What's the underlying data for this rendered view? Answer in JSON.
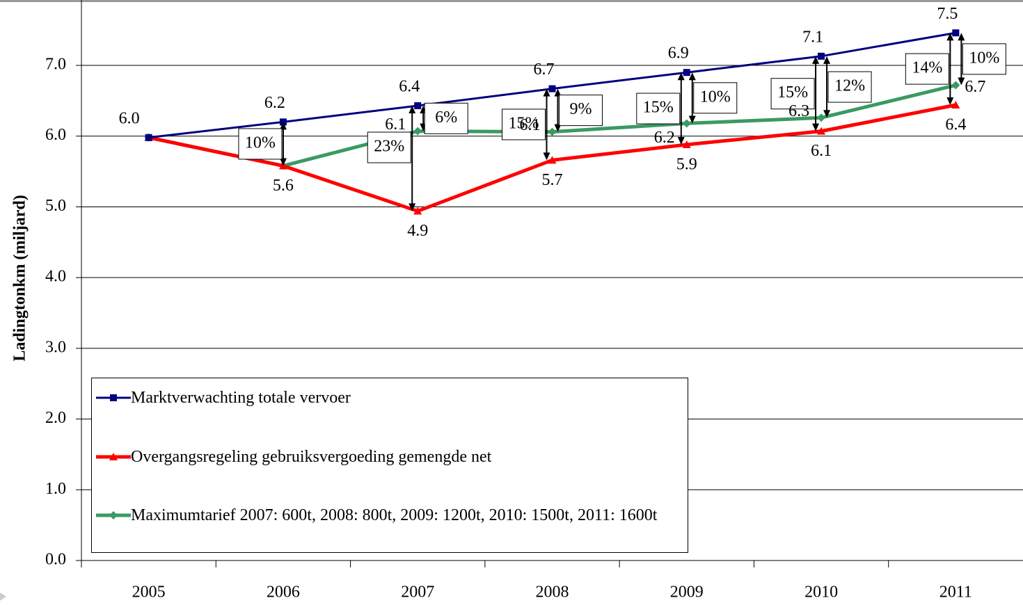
{
  "chart_data": {
    "type": "line",
    "y_label": "Ladingtonkm (miljard)",
    "categories": [
      "2005",
      "2006",
      "2007",
      "2008",
      "2009",
      "2010",
      "2011"
    ],
    "ylim": [
      0,
      7.9
    ],
    "yticks": [
      {
        "value": 0,
        "label": "0.0"
      },
      {
        "value": 1,
        "label": "1.0"
      },
      {
        "value": 2,
        "label": "2.0"
      },
      {
        "value": 3,
        "label": "3.0"
      },
      {
        "value": 4,
        "label": "4.0"
      },
      {
        "value": 5,
        "label": "5.0"
      },
      {
        "value": 6,
        "label": "6.0"
      },
      {
        "value": 7,
        "label": "7.0"
      }
    ],
    "grid": true,
    "series": [
      {
        "name": "Marktverwachting totale vervoer",
        "color": "#000080",
        "marker": "square",
        "values": [
          5.98,
          6.2,
          6.43,
          6.67,
          6.9,
          7.13,
          7.46
        ],
        "value_labels": [
          "6.0",
          "6.2",
          "6.4",
          "6.7",
          "6.9",
          "7.1",
          "7.5"
        ]
      },
      {
        "name": "Overgangsregeling gebruiksvergoeding gemengde net",
        "color": "#ff0000",
        "marker": "triangle",
        "values": [
          5.98,
          5.58,
          4.94,
          5.66,
          5.88,
          6.07,
          6.44
        ],
        "value_labels": [
          null,
          "5.6",
          "4.9",
          "5.7",
          "5.9",
          "6.1",
          "6.4"
        ],
        "gap_labels": [
          null,
          "10%",
          "23%",
          "15%",
          "15%",
          "15%",
          "14%"
        ]
      },
      {
        "name": "Maximumtarief 2007: 600t, 2008: 800t, 2009: 1200t, 2010: 1500t, 2011: 1600t",
        "color": "#3a9a62",
        "marker": "diamond",
        "values": [
          5.98,
          5.58,
          6.07,
          6.06,
          6.18,
          6.26,
          6.72
        ],
        "value_labels": [
          null,
          null,
          "6.1",
          "6.1",
          "6.2",
          "6.3",
          "6.7"
        ],
        "gap_labels": [
          null,
          null,
          "6%",
          "9%",
          "10%",
          "12%",
          "10%"
        ]
      }
    ]
  }
}
